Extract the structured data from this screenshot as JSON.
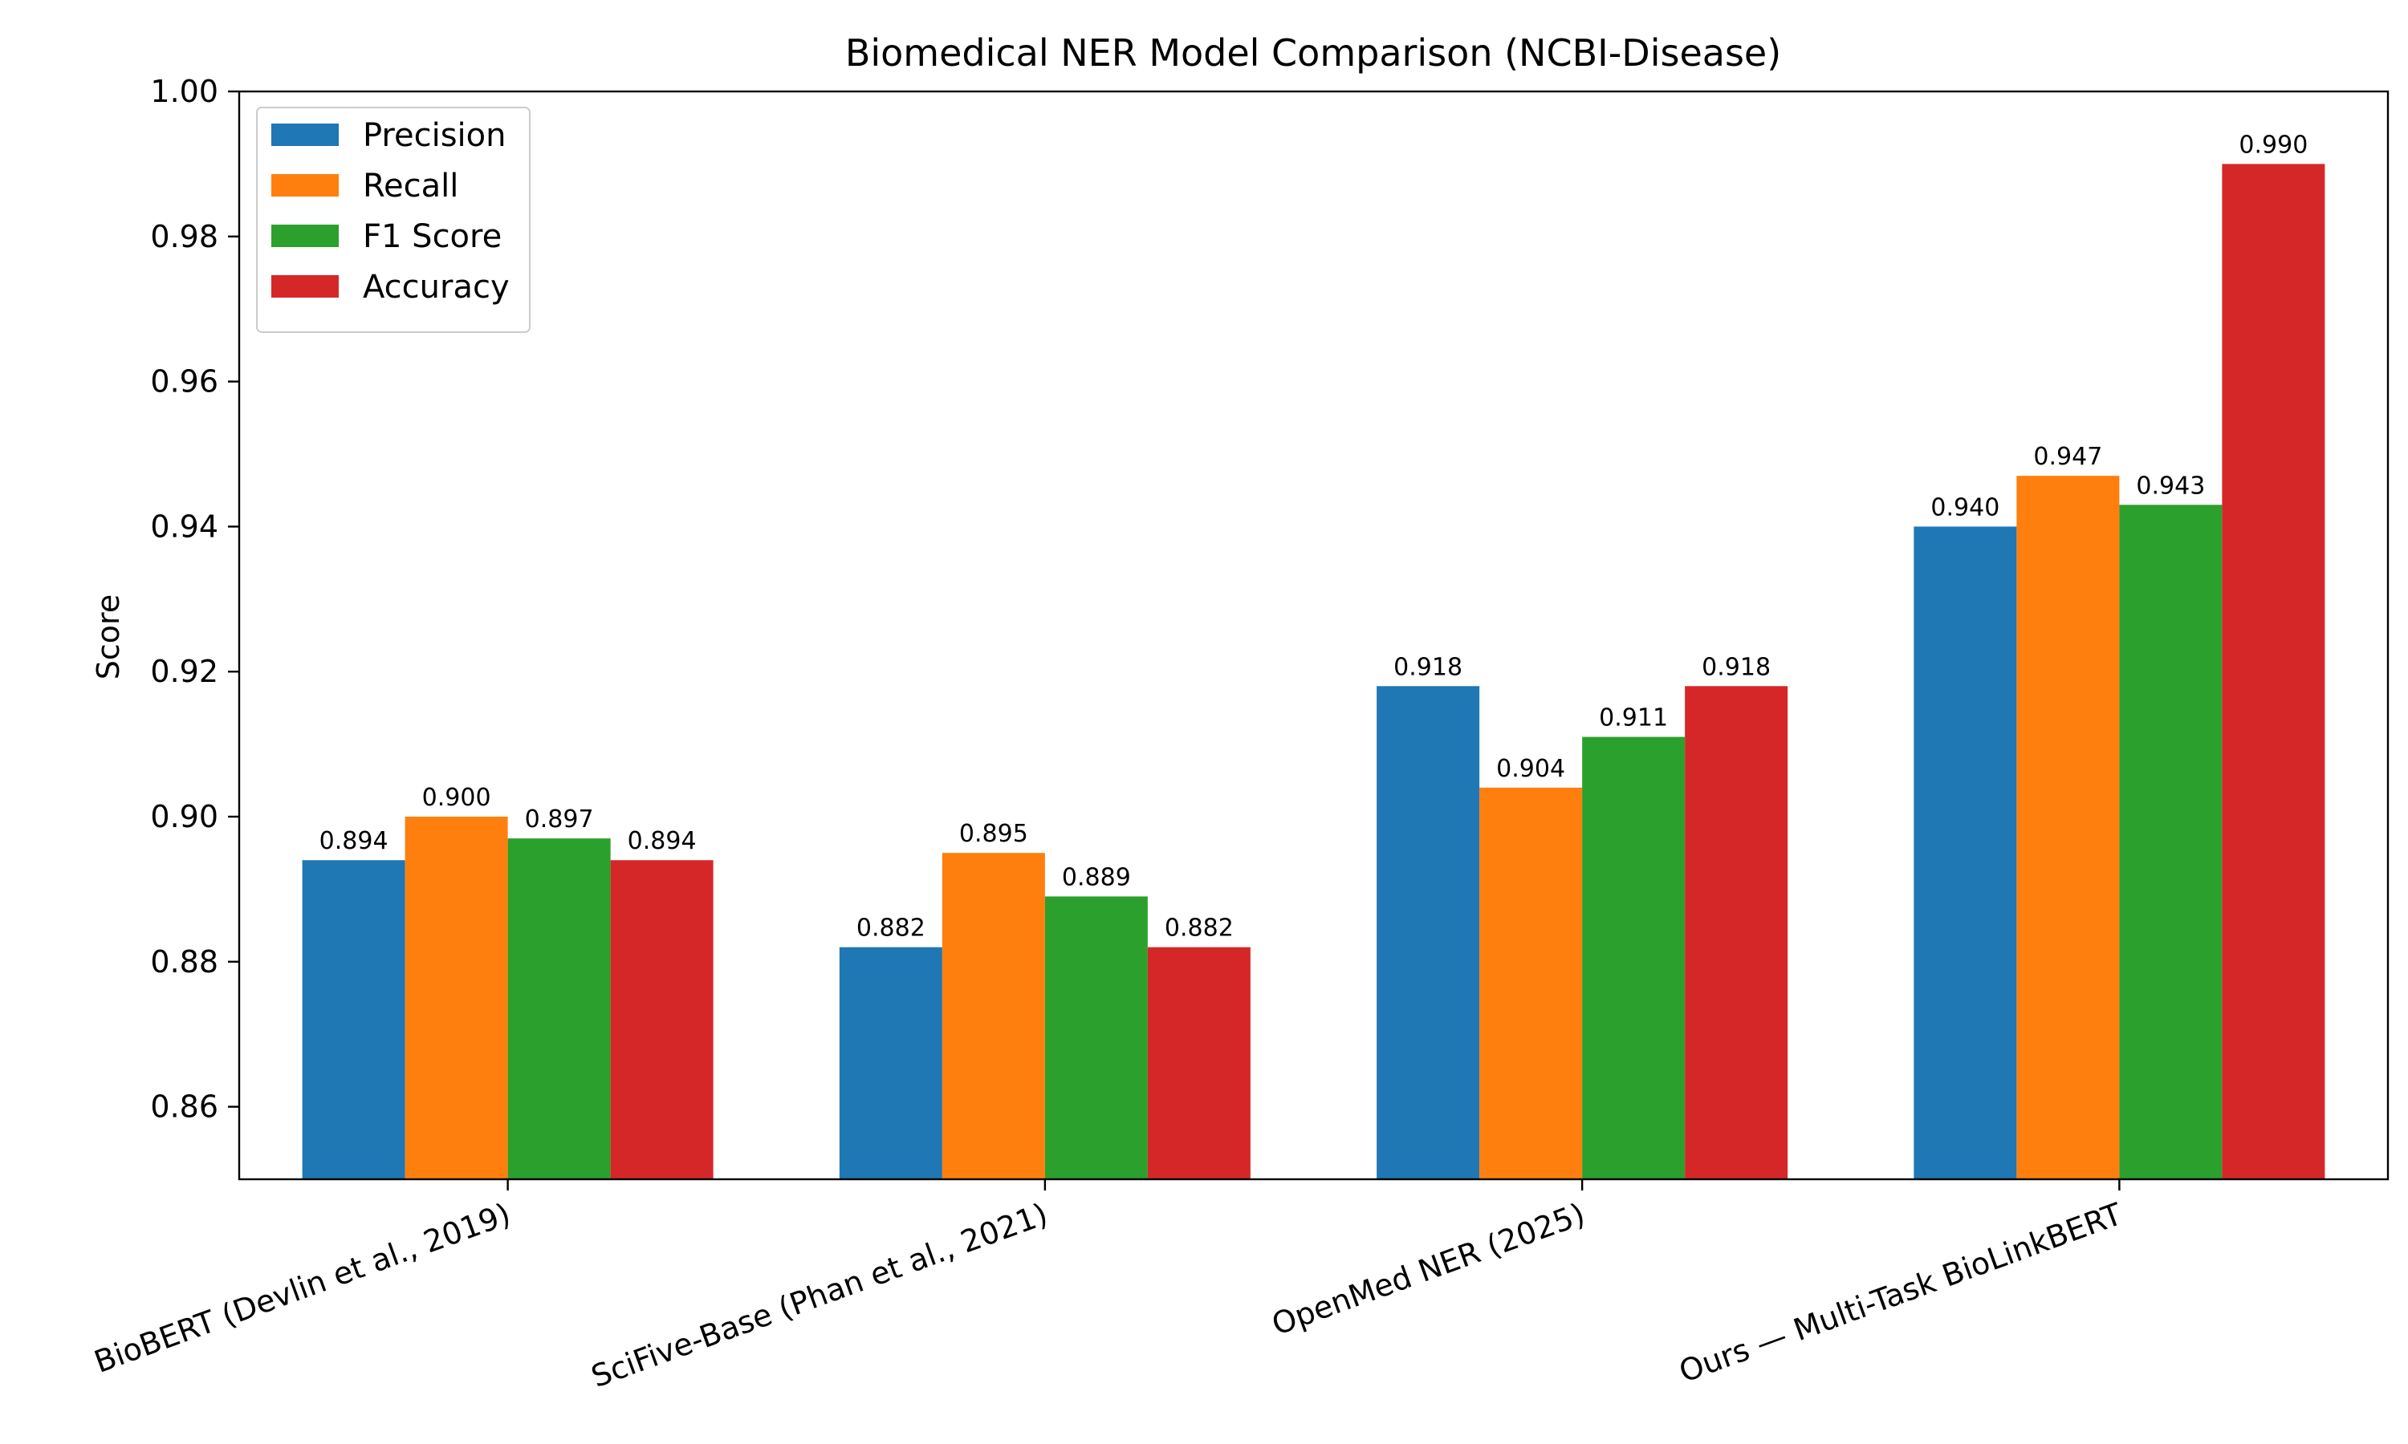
{
  "chart_data": {
    "type": "bar",
    "title": "Biomedical NER Model Comparison (NCBI-Disease)",
    "xlabel": "",
    "ylabel": "Score",
    "ylim": [
      0.85,
      1.0
    ],
    "yticks": [
      "0.86",
      "0.88",
      "0.90",
      "0.92",
      "0.94",
      "0.96",
      "0.98",
      "1.00"
    ],
    "categories": [
      "BioBERT (Devlin et al., 2019)",
      "SciFive-Base (Phan et al., 2021)",
      "OpenMed NER (2025)",
      "Ours — Multi-Task BioLinkBERT"
    ],
    "series": [
      {
        "name": "Precision",
        "color": "#1f77b4",
        "values": [
          0.894,
          0.882,
          0.918,
          0.94
        ],
        "labels": [
          "0.894",
          "0.882",
          "0.918",
          "0.940"
        ]
      },
      {
        "name": "Recall",
        "color": "#ff7f0e",
        "values": [
          0.9,
          0.895,
          0.904,
          0.947
        ],
        "labels": [
          "0.900",
          "0.895",
          "0.904",
          "0.947"
        ]
      },
      {
        "name": "F1 Score",
        "color": "#2ca02c",
        "values": [
          0.897,
          0.889,
          0.911,
          0.943
        ],
        "labels": [
          "0.897",
          "0.889",
          "0.911",
          "0.943"
        ]
      },
      {
        "name": "Accuracy",
        "color": "#d62728",
        "values": [
          0.894,
          0.882,
          0.918,
          0.99
        ],
        "labels": [
          "0.894",
          "0.882",
          "0.918",
          "0.990"
        ]
      }
    ],
    "legend_position": "top-left",
    "grid": false
  }
}
